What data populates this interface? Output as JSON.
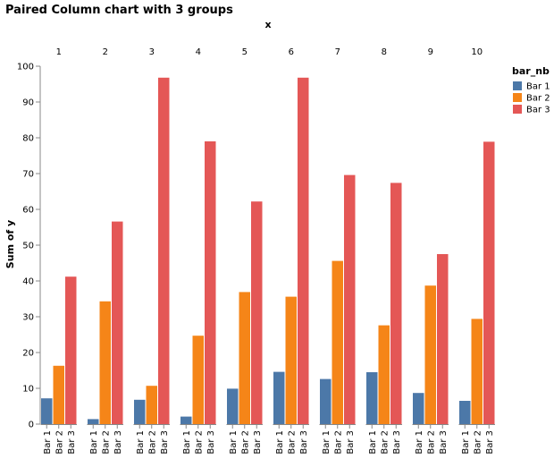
{
  "chart_data": {
    "type": "bar",
    "title": "Paired Column chart with 3 groups",
    "column_axis_title": "x",
    "ylabel": "Sum of y",
    "ylim": [
      0,
      100
    ],
    "yticks": [
      0,
      10,
      20,
      30,
      40,
      50,
      60,
      70,
      80,
      90,
      100
    ],
    "grid": false,
    "legend_title": "bar_nb",
    "legend_position": "right",
    "groups": [
      "1",
      "2",
      "3",
      "4",
      "5",
      "6",
      "7",
      "8",
      "9",
      "10"
    ],
    "series": [
      {
        "name": "Bar 1",
        "color": "#4c78a8",
        "values": [
          7.2,
          1.4,
          6.8,
          2.1,
          9.9,
          14.6,
          12.6,
          14.5,
          8.7,
          6.5
        ]
      },
      {
        "name": "Bar 2",
        "color": "#f58518",
        "values": [
          16.3,
          34.3,
          10.7,
          24.7,
          36.9,
          35.6,
          45.6,
          27.6,
          38.7,
          29.4
        ]
      },
      {
        "name": "Bar 3",
        "color": "#e45756",
        "values": [
          41.2,
          56.6,
          96.8,
          79.0,
          62.2,
          96.8,
          69.6,
          67.4,
          47.5,
          78.9
        ]
      }
    ]
  }
}
